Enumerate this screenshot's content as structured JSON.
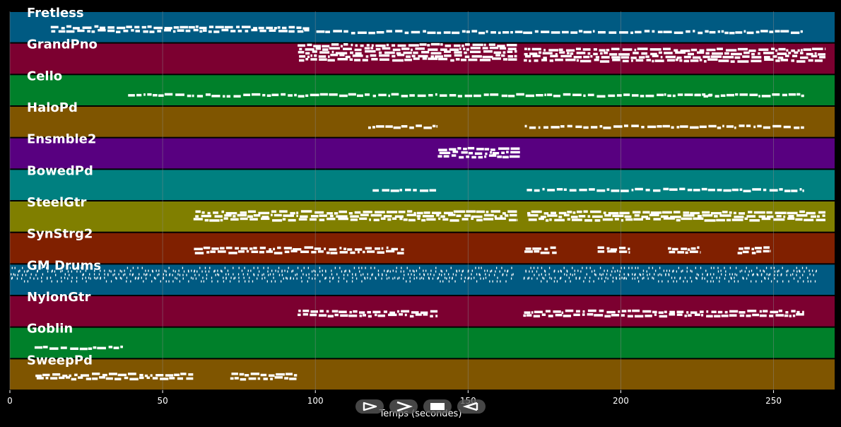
{
  "xaxis": {
    "label": "Temps (secondes)",
    "ticks": [
      0,
      50,
      100,
      150,
      200,
      250
    ],
    "range": [
      0,
      270
    ]
  },
  "controls": [
    {
      "name": "play-button",
      "icon": "play-icon"
    },
    {
      "name": "fast-forward-button",
      "icon": "fast-forward-icon"
    },
    {
      "name": "stop-button",
      "icon": "stop-icon"
    },
    {
      "name": "rewind-button",
      "icon": "rewind-icon"
    }
  ],
  "colors": {
    "background": "#000000",
    "notes": "#ffffff",
    "grid": "#8a8a8a"
  },
  "tracks": [
    {
      "name": "Fretless",
      "color": "#005a82",
      "segments": [
        [
          13,
          98,
          2
        ],
        [
          100,
          260,
          1
        ]
      ]
    },
    {
      "name": "GrandPno",
      "color": "#7c0030",
      "segments": [
        [
          94,
          166,
          5
        ],
        [
          168,
          267,
          4
        ]
      ]
    },
    {
      "name": "Cello",
      "color": "#00802a",
      "segments": [
        [
          38,
          230,
          1
        ],
        [
          224,
          260,
          1
        ]
      ]
    },
    {
      "name": "HaloPd",
      "color": "#7f5500",
      "segments": [
        [
          117,
          140,
          1
        ],
        [
          168,
          260,
          1
        ]
      ]
    },
    {
      "name": "Ensmble2",
      "color": "#580080",
      "segments": [
        [
          140,
          167,
          3
        ]
      ]
    },
    {
      "name": "BowedPd",
      "color": "#008080",
      "segments": [
        [
          118,
          140,
          1
        ],
        [
          169,
          260,
          1
        ]
      ]
    },
    {
      "name": "SteelGtr",
      "color": "#807f00",
      "segments": [
        [
          60,
          166,
          3
        ],
        [
          169,
          267,
          3
        ]
      ]
    },
    {
      "name": "SynStrg2",
      "color": "#802000",
      "segments": [
        [
          60,
          129,
          2
        ],
        [
          168,
          179,
          2
        ],
        [
          192,
          203,
          2
        ],
        [
          215,
          226,
          2
        ],
        [
          238,
          249,
          2
        ]
      ]
    },
    {
      "name": "GM Drums",
      "color": "#005a82",
      "segments": [
        [
          0,
          165,
          4
        ],
        [
          168,
          264,
          4
        ]
      ]
    },
    {
      "name": "NylonGtr",
      "color": "#7c0030",
      "segments": [
        [
          94,
          140,
          2
        ],
        [
          168,
          260,
          2
        ]
      ]
    },
    {
      "name": "Goblin",
      "color": "#00802a",
      "segments": [
        [
          8,
          37,
          1
        ]
      ]
    },
    {
      "name": "SweepPd",
      "color": "#7f5500",
      "segments": [
        [
          8,
          60,
          2
        ],
        [
          72,
          94,
          2
        ]
      ]
    }
  ]
}
